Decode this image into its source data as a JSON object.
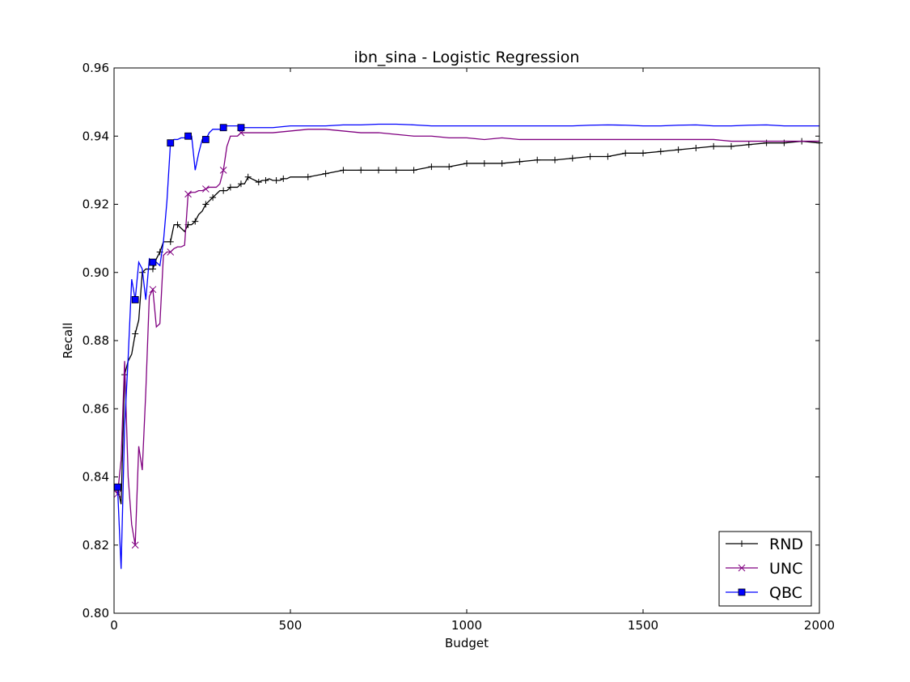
{
  "chart_data": {
    "type": "line",
    "title": "ibn_sina - Logistic Regression",
    "xlabel": "Budget",
    "ylabel": "Recall",
    "xlim": [
      0,
      2000
    ],
    "ylim": [
      0.8,
      0.96
    ],
    "xticks": [
      0,
      500,
      1000,
      1500,
      2000
    ],
    "xtick_labels": [
      "0",
      "500",
      "1000",
      "1500",
      "2000"
    ],
    "yticks": [
      0.8,
      0.82,
      0.84,
      0.86,
      0.88,
      0.9,
      0.92,
      0.94,
      0.96
    ],
    "ytick_labels": [
      "0.80",
      "0.82",
      "0.84",
      "0.86",
      "0.88",
      "0.90",
      "0.92",
      "0.94",
      "0.96"
    ],
    "grid": false,
    "legend_position": "lower-right",
    "series": [
      {
        "name": "RND",
        "color": "#000000",
        "marker": "plus",
        "x": [
          0,
          10,
          20,
          30,
          40,
          50,
          60,
          70,
          80,
          90,
          100,
          110,
          120,
          130,
          140,
          150,
          160,
          170,
          180,
          190,
          200,
          210,
          220,
          230,
          240,
          250,
          260,
          270,
          280,
          290,
          300,
          310,
          320,
          330,
          340,
          350,
          360,
          370,
          380,
          390,
          400,
          410,
          420,
          430,
          440,
          450,
          460,
          470,
          480,
          490,
          500,
          550,
          600,
          650,
          700,
          750,
          800,
          850,
          900,
          950,
          1000,
          1050,
          1100,
          1150,
          1200,
          1250,
          1300,
          1350,
          1400,
          1450,
          1500,
          1550,
          1600,
          1650,
          1700,
          1750,
          1800,
          1850,
          1900,
          1950,
          2000
        ],
        "y": [
          0.837,
          0.837,
          0.832,
          0.87,
          0.874,
          0.876,
          0.882,
          0.886,
          0.9,
          0.901,
          0.901,
          0.901,
          0.904,
          0.906,
          0.909,
          0.909,
          0.909,
          0.914,
          0.914,
          0.913,
          0.912,
          0.914,
          0.914,
          0.915,
          0.917,
          0.918,
          0.92,
          0.921,
          0.922,
          0.923,
          0.924,
          0.924,
          0.924,
          0.925,
          0.925,
          0.925,
          0.926,
          0.926,
          0.928,
          0.9275,
          0.927,
          0.9265,
          0.927,
          0.927,
          0.9275,
          0.927,
          0.927,
          0.927,
          0.9275,
          0.9275,
          0.928,
          0.928,
          0.929,
          0.93,
          0.93,
          0.93,
          0.93,
          0.93,
          0.931,
          0.931,
          0.932,
          0.932,
          0.932,
          0.9325,
          0.933,
          0.933,
          0.9335,
          0.934,
          0.934,
          0.935,
          0.935,
          0.9355,
          0.936,
          0.9365,
          0.937,
          0.937,
          0.9375,
          0.938,
          0.938,
          0.9385,
          0.938
        ]
      },
      {
        "name": "UNC",
        "color": "#800080",
        "marker": "x",
        "x": [
          0,
          10,
          20,
          30,
          40,
          50,
          60,
          70,
          80,
          90,
          100,
          110,
          120,
          130,
          140,
          150,
          160,
          170,
          180,
          190,
          200,
          210,
          220,
          230,
          240,
          250,
          260,
          270,
          280,
          290,
          300,
          310,
          320,
          330,
          340,
          350,
          360,
          400,
          450,
          500,
          550,
          600,
          650,
          700,
          750,
          800,
          850,
          900,
          950,
          1000,
          1050,
          1100,
          1150,
          1200,
          1250,
          1300,
          1350,
          1400,
          1450,
          1500,
          1550,
          1600,
          1650,
          1700,
          1750,
          1800,
          1850,
          1900,
          1950,
          2000
        ],
        "y": [
          0.837,
          0.835,
          0.845,
          0.874,
          0.84,
          0.826,
          0.82,
          0.849,
          0.842,
          0.865,
          0.893,
          0.895,
          0.884,
          0.885,
          0.905,
          0.906,
          0.906,
          0.907,
          0.9075,
          0.9075,
          0.908,
          0.923,
          0.9235,
          0.9235,
          0.924,
          0.924,
          0.9245,
          0.925,
          0.925,
          0.925,
          0.926,
          0.93,
          0.937,
          0.94,
          0.94,
          0.94,
          0.941,
          0.941,
          0.941,
          0.9415,
          0.942,
          0.942,
          0.9415,
          0.941,
          0.941,
          0.9405,
          0.94,
          0.94,
          0.9395,
          0.9395,
          0.939,
          0.9395,
          0.939,
          0.939,
          0.939,
          0.939,
          0.939,
          0.939,
          0.939,
          0.939,
          0.939,
          0.939,
          0.939,
          0.939,
          0.9385,
          0.9385,
          0.9385,
          0.9385,
          0.9385,
          0.9385
        ]
      },
      {
        "name": "QBC",
        "color": "#0000ff",
        "marker": "square",
        "x": [
          0,
          10,
          20,
          30,
          40,
          50,
          60,
          70,
          80,
          90,
          100,
          110,
          120,
          130,
          140,
          150,
          160,
          170,
          180,
          190,
          200,
          210,
          220,
          230,
          240,
          250,
          260,
          270,
          280,
          290,
          300,
          310,
          320,
          330,
          340,
          350,
          360,
          400,
          450,
          500,
          550,
          600,
          650,
          700,
          750,
          800,
          850,
          900,
          950,
          1000,
          1050,
          1100,
          1150,
          1200,
          1250,
          1300,
          1350,
          1400,
          1450,
          1500,
          1550,
          1600,
          1650,
          1700,
          1750,
          1800,
          1850,
          1900,
          1950,
          2000
        ],
        "y": [
          0.837,
          0.837,
          0.813,
          0.855,
          0.875,
          0.898,
          0.892,
          0.903,
          0.901,
          0.892,
          0.904,
          0.903,
          0.903,
          0.902,
          0.909,
          0.921,
          0.938,
          0.939,
          0.939,
          0.9395,
          0.9395,
          0.94,
          0.94,
          0.93,
          0.935,
          0.939,
          0.939,
          0.941,
          0.942,
          0.942,
          0.942,
          0.9425,
          0.943,
          0.943,
          0.943,
          0.943,
          0.9425,
          0.9425,
          0.9425,
          0.943,
          0.943,
          0.943,
          0.9433,
          0.9433,
          0.9435,
          0.9435,
          0.9433,
          0.943,
          0.943,
          0.943,
          0.943,
          0.943,
          0.943,
          0.943,
          0.943,
          0.943,
          0.9432,
          0.9433,
          0.9432,
          0.943,
          0.943,
          0.9432,
          0.9433,
          0.943,
          0.943,
          0.9432,
          0.9433,
          0.943,
          0.943,
          0.943
        ]
      }
    ]
  }
}
